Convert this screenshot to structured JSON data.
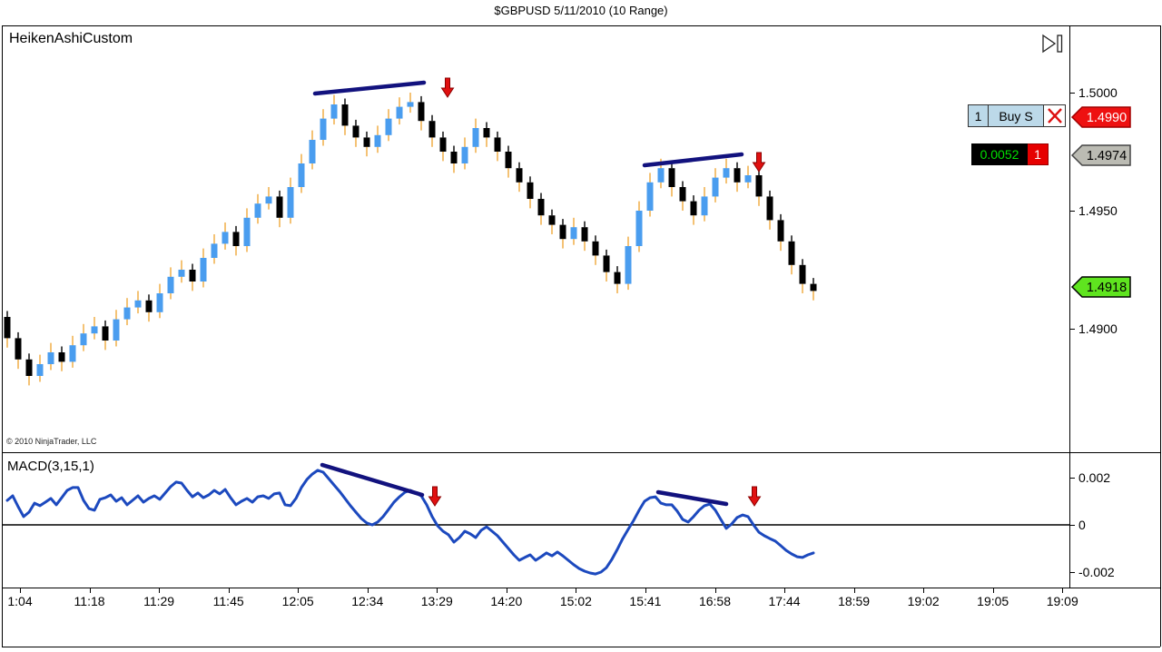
{
  "window": {
    "title": "$GBPUSD  5/11/2010 (10 Range)"
  },
  "price_panel": {
    "indicator_label": "HeikenAshiCustom",
    "copyright": "© 2010 NinjaTrader, LLC",
    "axis_labels": [
      {
        "text": "1.5000",
        "price": 1.5
      },
      {
        "text": "1.4950",
        "price": 1.495
      },
      {
        "text": "1.4900",
        "price": 1.49
      }
    ],
    "badges": [
      {
        "name": "working-order-price-badge",
        "text": "1.4990",
        "price": 1.499,
        "bg": "#EE1111",
        "fg": "#FFFFFF",
        "border": "#A00000",
        "interactable": true
      },
      {
        "name": "entry-price-badge",
        "text": "1.4974",
        "price": 1.4974,
        "bg": "#BBBBB3",
        "fg": "#000000",
        "border": "#444444",
        "interactable": false
      },
      {
        "name": "last-price-badge",
        "text": "1.4918",
        "price": 1.4918,
        "bg": "#5FE41F",
        "fg": "#000000",
        "border": "#000000",
        "interactable": false
      }
    ],
    "order_row": {
      "quantity": "1",
      "action": "Buy S",
      "close_icon": "red-x-icon"
    },
    "pnl_row": {
      "pnl": "0.0052",
      "pnl_color": "#00E000",
      "quantity": "1"
    },
    "skip_icon": "skip-to-end-icon"
  },
  "macd_panel": {
    "label": "MACD(3,15,1)",
    "axis_labels": [
      {
        "text": "0.002",
        "value": 0.002
      },
      {
        "text": "0",
        "value": 0
      },
      {
        "text": "-0.002",
        "value": -0.002
      }
    ]
  },
  "time_axis": {
    "labels": [
      "1:04",
      "11:18",
      "11:29",
      "11:45",
      "12:05",
      "12:34",
      "13:29",
      "14:20",
      "15:02",
      "15:41",
      "16:58",
      "17:44",
      "18:59",
      "19:02",
      "19:05",
      "19:09"
    ]
  },
  "chart_data": [
    {
      "type": "candlestick",
      "title": "$GBPUSD Heiken Ashi, 10 Range, 5/11/2010",
      "ylim": [
        1.4876,
        1.5005
      ],
      "first_open": 1.4905,
      "closes": [
        1.4896,
        1.4887,
        1.488,
        1.4885,
        1.489,
        1.4886,
        1.4893,
        1.4898,
        1.4901,
        1.4895,
        1.4904,
        1.4909,
        1.4912,
        1.4907,
        1.4915,
        1.4922,
        1.4925,
        1.492,
        1.493,
        1.4936,
        1.4941,
        1.4935,
        1.4947,
        1.4953,
        1.4956,
        1.4947,
        1.496,
        1.497,
        1.498,
        1.4989,
        1.4995,
        1.4986,
        1.4981,
        1.4977,
        1.4982,
        1.4989,
        1.4994,
        1.4996,
        1.4988,
        1.4981,
        1.4975,
        1.497,
        1.4977,
        1.4985,
        1.4981,
        1.4975,
        1.4968,
        1.4962,
        1.4955,
        1.4948,
        1.4944,
        1.4938,
        1.4943,
        1.4937,
        1.4931,
        1.4924,
        1.4919,
        1.4935,
        1.495,
        1.4962,
        1.4968,
        1.496,
        1.4954,
        1.4948,
        1.4956,
        1.4964,
        1.4968,
        1.4962,
        1.4965,
        1.4956,
        1.4946,
        1.4937,
        1.4927,
        1.4919,
        1.4916
      ],
      "up_color": "#4A9DEF",
      "down_color": "#000000",
      "wick_up_color": "#EFA93A",
      "wick_down_color": "#000000"
    },
    {
      "type": "line",
      "name": "MACD(3,15,1)",
      "color": "#1C49BE",
      "ylim": [
        -0.0029,
        0.0031
      ],
      "zero_line": true,
      "points": [
        [
          8,
          0.00104
        ],
        [
          14,
          0.00123
        ],
        [
          20,
          0.00077
        ],
        [
          26,
          0.00035
        ],
        [
          32,
          0.00054
        ],
        [
          38,
          0.00092
        ],
        [
          44,
          0.00081
        ],
        [
          50,
          0.00096
        ],
        [
          56,
          0.00112
        ],
        [
          62,
          0.00085
        ],
        [
          68,
          0.00115
        ],
        [
          74,
          0.00146
        ],
        [
          80,
          0.00158
        ],
        [
          86,
          0.00158
        ],
        [
          92,
          0.00104
        ],
        [
          98,
          0.00069
        ],
        [
          104,
          0.00062
        ],
        [
          110,
          0.00108
        ],
        [
          116,
          0.00115
        ],
        [
          122,
          0.00127
        ],
        [
          128,
          0.001
        ],
        [
          134,
          0.00115
        ],
        [
          140,
          0.00085
        ],
        [
          146,
          0.00104
        ],
        [
          152,
          0.00123
        ],
        [
          158,
          0.00096
        ],
        [
          164,
          0.00112
        ],
        [
          170,
          0.00123
        ],
        [
          176,
          0.00108
        ],
        [
          182,
          0.00135
        ],
        [
          188,
          0.00162
        ],
        [
          194,
          0.00181
        ],
        [
          200,
          0.00177
        ],
        [
          206,
          0.00146
        ],
        [
          212,
          0.00119
        ],
        [
          218,
          0.00135
        ],
        [
          224,
          0.00115
        ],
        [
          230,
          0.00127
        ],
        [
          236,
          0.00146
        ],
        [
          242,
          0.00131
        ],
        [
          248,
          0.0015
        ],
        [
          254,
          0.00115
        ],
        [
          260,
          0.00085
        ],
        [
          266,
          0.001
        ],
        [
          272,
          0.00112
        ],
        [
          278,
          0.00096
        ],
        [
          284,
          0.00119
        ],
        [
          290,
          0.00123
        ],
        [
          296,
          0.00112
        ],
        [
          302,
          0.00131
        ],
        [
          308,
          0.00135
        ],
        [
          314,
          0.00085
        ],
        [
          320,
          0.00081
        ],
        [
          326,
          0.00112
        ],
        [
          332,
          0.00158
        ],
        [
          338,
          0.00192
        ],
        [
          344,
          0.00215
        ],
        [
          350,
          0.00231
        ],
        [
          356,
          0.00223
        ],
        [
          362,
          0.00196
        ],
        [
          368,
          0.00169
        ],
        [
          374,
          0.00142
        ],
        [
          380,
          0.00112
        ],
        [
          386,
          0.00081
        ],
        [
          392,
          0.00054
        ],
        [
          398,
          0.00027
        ],
        [
          404,
          8e-05
        ],
        [
          410,
          0.0
        ],
        [
          416,
          0.00012
        ],
        [
          422,
          0.00035
        ],
        [
          428,
          0.00065
        ],
        [
          434,
          0.00096
        ],
        [
          440,
          0.00119
        ],
        [
          446,
          0.00138
        ],
        [
          452,
          0.00146
        ],
        [
          458,
          0.00135
        ],
        [
          464,
          0.00123
        ],
        [
          470,
          0.00085
        ],
        [
          476,
          0.00035
        ],
        [
          482,
          -4e-05
        ],
        [
          488,
          -0.00027
        ],
        [
          494,
          -0.00042
        ],
        [
          500,
          -0.00073
        ],
        [
          506,
          -0.00054
        ],
        [
          512,
          -0.00027
        ],
        [
          518,
          -0.00038
        ],
        [
          524,
          -0.00054
        ],
        [
          530,
          -0.00023
        ],
        [
          536,
          -8e-05
        ],
        [
          542,
          -0.00027
        ],
        [
          548,
          -0.00046
        ],
        [
          554,
          -0.00073
        ],
        [
          560,
          -0.001
        ],
        [
          566,
          -0.00127
        ],
        [
          572,
          -0.0015
        ],
        [
          578,
          -0.00138
        ],
        [
          584,
          -0.00127
        ],
        [
          590,
          -0.0015
        ],
        [
          596,
          -0.00135
        ],
        [
          602,
          -0.00119
        ],
        [
          608,
          -0.00131
        ],
        [
          614,
          -0.00115
        ],
        [
          620,
          -0.00131
        ],
        [
          626,
          -0.0015
        ],
        [
          632,
          -0.00169
        ],
        [
          638,
          -0.00185
        ],
        [
          644,
          -0.00196
        ],
        [
          650,
          -0.00204
        ],
        [
          656,
          -0.00208
        ],
        [
          662,
          -0.002
        ],
        [
          668,
          -0.00181
        ],
        [
          674,
          -0.00146
        ],
        [
          680,
          -0.00104
        ],
        [
          686,
          -0.00058
        ],
        [
          692,
          -0.00019
        ],
        [
          698,
          0.00019
        ],
        [
          704,
          0.00062
        ],
        [
          710,
          0.001
        ],
        [
          716,
          0.00115
        ],
        [
          722,
          0.00119
        ],
        [
          728,
          0.00092
        ],
        [
          734,
          0.00085
        ],
        [
          740,
          0.00085
        ],
        [
          746,
          0.00058
        ],
        [
          752,
          0.00023
        ],
        [
          758,
          0.00012
        ],
        [
          764,
          0.00035
        ],
        [
          770,
          0.00062
        ],
        [
          776,
          0.00081
        ],
        [
          782,
          0.00088
        ],
        [
          788,
          0.00062
        ],
        [
          794,
          0.00023
        ],
        [
          800,
          -0.00015
        ],
        [
          806,
          4e-05
        ],
        [
          812,
          0.00031
        ],
        [
          818,
          0.00042
        ],
        [
          824,
          0.00035
        ],
        [
          830,
          0.0
        ],
        [
          836,
          -0.00031
        ],
        [
          842,
          -0.00046
        ],
        [
          848,
          -0.00058
        ],
        [
          854,
          -0.00069
        ],
        [
          860,
          -0.00088
        ],
        [
          866,
          -0.00108
        ],
        [
          872,
          -0.00123
        ],
        [
          878,
          -0.00135
        ],
        [
          884,
          -0.00138
        ],
        [
          890,
          -0.00127
        ],
        [
          896,
          -0.00119
        ]
      ]
    }
  ],
  "annotations": {
    "trendline_color": "#12127E",
    "arrow_fill": "#E01010",
    "arrow_stroke": "#8B0000",
    "price_trendlines": [
      [
        347,
        103,
        467,
        91
      ],
      [
        710,
        182,
        817,
        170
      ]
    ],
    "price_arrows": [
      [
        493,
        86
      ],
      [
        836,
        168
      ]
    ],
    "macd_trendlines": [
      [
        355,
        512,
        465,
        545
      ],
      [
        725,
        542,
        800,
        555
      ]
    ],
    "macd_arrows": [
      [
        479,
        536
      ],
      [
        831,
        536
      ]
    ]
  }
}
